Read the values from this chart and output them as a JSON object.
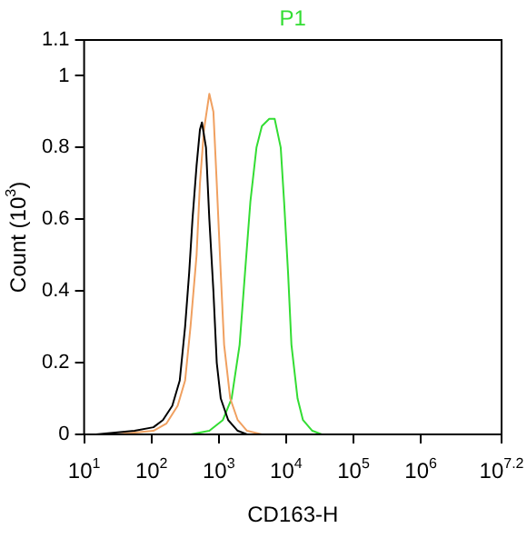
{
  "chart_data": {
    "type": "line",
    "title": "P1",
    "xlabel": "CD163-H",
    "ylabel": "Count (10$^{3}$)",
    "log": "x",
    "xlim": [
      10,
      15848932
    ],
    "ylim": [
      0,
      1.1
    ],
    "xticks": [
      {
        "value": 10,
        "label": "10$^{1}$"
      },
      {
        "value": 100,
        "label": "10$^{2}$"
      },
      {
        "value": 1000,
        "label": "10$^{3}$"
      },
      {
        "value": 10000,
        "label": "10$^{4}$"
      },
      {
        "value": 100000,
        "label": "10$^{5}$"
      },
      {
        "value": 1000000,
        "label": "10$^{6}$"
      },
      {
        "value": 15848932,
        "label": "10$^{7.2}$"
      }
    ],
    "yticks": [
      0,
      0.2,
      0.4,
      0.6,
      0.8,
      1,
      1.1
    ],
    "grid": false,
    "legend": false,
    "marker": "none",
    "line_style": "solid",
    "series": [
      {
        "color": "#000000",
        "x": [
          15,
          56,
          107,
          148,
          204,
          263,
          316,
          363,
          407,
          468,
          525,
          562,
          646,
          724,
          832,
          933,
          1070,
          1380,
          1910,
          2630
        ],
        "values": [
          0,
          0.01,
          0.02,
          0.04,
          0.08,
          0.15,
          0.3,
          0.45,
          0.6,
          0.75,
          0.85,
          0.87,
          0.8,
          0.6,
          0.4,
          0.2,
          0.1,
          0.04,
          0.01,
          0
        ]
      },
      {
        "color": "#f0a060",
        "x": [
          30,
          107,
          166,
          245,
          316,
          380,
          468,
          525,
          603,
          724,
          832,
          933,
          1070,
          1200,
          1480,
          1910,
          2630,
          4370
        ],
        "values": [
          0,
          0.01,
          0.03,
          0.08,
          0.15,
          0.3,
          0.5,
          0.7,
          0.85,
          0.95,
          0.9,
          0.7,
          0.45,
          0.25,
          0.1,
          0.04,
          0.01,
          0
        ]
      },
      {
        "color": "#33dd33",
        "x": [
          380,
          724,
          1150,
          1550,
          2040,
          2450,
          2950,
          3630,
          4370,
          5620,
          6760,
          8320,
          9330,
          10700,
          12000,
          14800,
          17800,
          24500,
          33900
        ],
        "values": [
          0,
          0.01,
          0.04,
          0.1,
          0.25,
          0.45,
          0.65,
          0.8,
          0.86,
          0.88,
          0.88,
          0.8,
          0.65,
          0.45,
          0.25,
          0.1,
          0.04,
          0.01,
          0
        ]
      }
    ]
  }
}
